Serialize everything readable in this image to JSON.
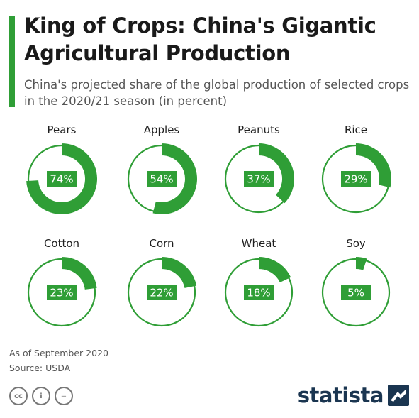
{
  "header": {
    "title": "King of Crops: China's Gigantic Agricultural Production",
    "subtitle": "China's projected share of the global production of selected crops in the 2020/21 season (in percent)"
  },
  "colors": {
    "accent": "#2f9e36",
    "ring_bg": "#ffffff",
    "label_text": "#ffffff",
    "brand": "#1a3550"
  },
  "chart_data": {
    "type": "pie",
    "subtype": "donut-grid",
    "unit": "%",
    "categories": [
      "Pears",
      "Apples",
      "Peanuts",
      "Rice",
      "Cotton",
      "Corn",
      "Wheat",
      "Soy"
    ],
    "values": [
      74,
      54,
      37,
      29,
      23,
      22,
      18,
      5
    ],
    "value_labels": [
      "74%",
      "54%",
      "37%",
      "29%",
      "23%",
      "22%",
      "18%",
      "5%"
    ],
    "grid": {
      "rows": 2,
      "columns": 4
    }
  },
  "footer": {
    "as_of": "As of September 2020",
    "source": "Source: USDA",
    "license_icons": [
      "cc-icon",
      "by-icon",
      "nd-icon"
    ],
    "license_glyphs": [
      "cc",
      "i",
      "="
    ],
    "brand": "statista",
    "brand_icon": "statista-logo-icon"
  }
}
